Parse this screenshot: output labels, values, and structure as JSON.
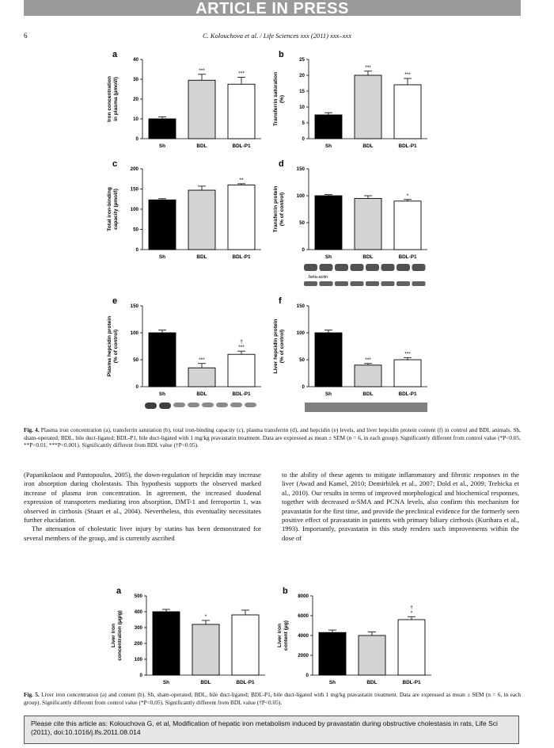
{
  "header": {
    "banner": "ARTICLE IN PRESS",
    "page_number": "6",
    "running_title": "C. Kolouchova et al. / Life Sciences xxx (2011) xxx–xxx"
  },
  "figures": [
    {
      "panels": [
        {
          "letter": "a",
          "type": "bar",
          "ylabel": [
            "Iron concentration",
            "in plasma (µmol/l)"
          ],
          "categories": [
            "Sh",
            "BDL",
            "BDL-P1"
          ],
          "values": [
            10,
            29.5,
            27.5
          ],
          "errors": [
            1,
            3,
            3.5
          ],
          "annotations": [
            [],
            [
              "***"
            ],
            [
              "***"
            ]
          ],
          "colors": [
            "#000000",
            "#d3d3d3",
            "#ffffff"
          ],
          "ylim": [
            0,
            40
          ],
          "yticks": [
            0,
            10,
            20,
            30,
            40
          ]
        },
        {
          "letter": "b",
          "type": "bar",
          "ylabel": [
            "Transferrin saturation",
            "(%)"
          ],
          "categories": [
            "Sh",
            "BDL",
            "BDL-P1"
          ],
          "values": [
            7.5,
            20,
            17
          ],
          "errors": [
            0.7,
            1.3,
            2
          ],
          "annotations": [
            [],
            [
              "***"
            ],
            [
              "***"
            ]
          ],
          "colors": [
            "#000000",
            "#d3d3d3",
            "#ffffff"
          ],
          "ylim": [
            0,
            25
          ],
          "yticks": [
            0,
            5,
            10,
            15,
            20,
            25
          ]
        },
        {
          "letter": "c",
          "type": "bar",
          "ylabel": [
            "Total iron-binding",
            "capacity (µmol/l)"
          ],
          "categories": [
            "Sh",
            "BDL",
            "BDL-P1"
          ],
          "values": [
            123,
            147,
            160
          ],
          "errors": [
            3,
            10,
            3
          ],
          "annotations": [
            [],
            [],
            [
              "**"
            ]
          ],
          "colors": [
            "#000000",
            "#d3d3d3",
            "#ffffff"
          ],
          "ylim": [
            0,
            200
          ],
          "yticks": [
            0,
            50,
            100,
            150,
            200
          ]
        },
        {
          "letter": "d",
          "type": "bar",
          "ylabel": [
            "Transferrin protein",
            "(% of control)"
          ],
          "categories": [
            "Sh",
            "BDL",
            "BDL-P1"
          ],
          "values": [
            100,
            95,
            90
          ],
          "errors": [
            2,
            5,
            3
          ],
          "annotations": [
            [],
            [],
            [
              "*"
            ]
          ],
          "colors": [
            "#000000",
            "#d3d3d3",
            "#ffffff"
          ],
          "ylim": [
            0,
            150
          ],
          "yticks": [
            0,
            50,
            100,
            150
          ],
          "blot_label": "beta-actin"
        },
        {
          "letter": "e",
          "type": "bar",
          "ylabel": [
            "Plasma hepcidin protein",
            "(% of control)"
          ],
          "categories": [
            "Sh",
            "BDL",
            "BDL-P1"
          ],
          "values": [
            100,
            35,
            60
          ],
          "errors": [
            5,
            8,
            6
          ],
          "annotations": [
            [],
            [
              "***"
            ],
            [
              "†",
              "***"
            ]
          ],
          "colors": [
            "#000000",
            "#d3d3d3",
            "#ffffff"
          ],
          "ylim": [
            0,
            150
          ],
          "yticks": [
            0,
            50,
            100,
            150
          ]
        },
        {
          "letter": "f",
          "type": "bar",
          "ylabel": [
            "Liver hepcidin protein",
            "(% of control)"
          ],
          "categories": [
            "Sh",
            "BDL",
            "BDL-P1"
          ],
          "values": [
            100,
            40,
            50
          ],
          "errors": [
            5,
            3,
            4
          ],
          "annotations": [
            [],
            [
              "***"
            ],
            [
              "***"
            ]
          ],
          "colors": [
            "#000000",
            "#d3d3d3",
            "#ffffff"
          ],
          "ylim": [
            0,
            150
          ],
          "yticks": [
            0,
            50,
            100,
            150
          ]
        }
      ],
      "caption_label": "Fig. 4.",
      "caption": "Plasma iron concentration (a), transferrin saturation (b), total iron-binding capacity (c), plasma transferrin (d), and hepcidin (e) levels, and liver hepcidin protein content (f) in control and BDL animals. Sh, sham-operated; BDL, bile duct-ligated; BDL-P1, bile duct-ligated with 1 mg/kg pravastatin treatment. Data are expressed as mean ± SEM (n = 6, in each group). Significantly different from control value (*P<0.05, **P<0.01, ***P<0.001). Significantly different from BDL value (†P<0.05)."
    },
    {
      "panels": [
        {
          "letter": "a",
          "type": "bar",
          "ylabel": [
            "Liver iron",
            "concentration (µg/g)"
          ],
          "categories": [
            "Sh",
            "BDL",
            "BDL-P1"
          ],
          "values": [
            400,
            320,
            380
          ],
          "errors": [
            15,
            25,
            30
          ],
          "annotations": [
            [],
            [
              "*"
            ],
            []
          ],
          "colors": [
            "#000000",
            "#d3d3d3",
            "#ffffff"
          ],
          "ylim": [
            0,
            500
          ],
          "yticks": [
            0,
            100,
            200,
            300,
            400,
            500
          ]
        },
        {
          "letter": "b",
          "type": "bar",
          "ylabel": [
            "Liver iron",
            "content (µg)"
          ],
          "categories": [
            "Sh",
            "BDL",
            "BDL-P1"
          ],
          "values": [
            4300,
            4000,
            5600
          ],
          "errors": [
            250,
            350,
            300
          ],
          "annotations": [
            [],
            [],
            [
              "†",
              "*"
            ]
          ],
          "colors": [
            "#000000",
            "#d3d3d3",
            "#ffffff"
          ],
          "ylim": [
            0,
            8000
          ],
          "yticks": [
            0,
            2000,
            4000,
            6000,
            8000
          ]
        }
      ],
      "caption_label": "Fig. 5.",
      "caption": "Liver iron concentration (a) and content (b). Sh, sham-operated; BDL, bile duct-ligated; BDL-P1, bile duct-ligated with 1 mg/kg pravastatin treatment. Data are expressed as mean ± SEM (n = 6, in each group). Significantly different from control value (*P<0.05). Significantly different from BDL value (†P<0.05)."
    }
  ],
  "body": {
    "left": [
      "(Papanikolaou and Pantopoulos, 2005), the down-regulation of hepcidin may increase iron absorption during cholestasis. This hypothesis supports the observed marked increase of plasma iron concentration. In agreement, the increased duodenal expression of transporters mediating iron absorption, DMT-1 and ferroportin 1, was observed in cirrhosis (Stuart et al., 2004). Nevertheless, this eventuality necessitates further elucidation.",
      "The attenuation of cholestatic liver injury by statins has been demonstrated for several members of the group, and is currently ascribed"
    ],
    "right": [
      "to the ability of these agents to mitigate inflammatory and fibrotic responses in the liver (Awad and Kamel, 2010; Demirbilek et al., 2007; Dold et al., 2009; Trebicka et al., 2010). Our results in terms of improved morphological and biochemical responses, together with decreased α-SMA and PCNA levels, also confirm this mechanism for pravastatin for the first time, and provide the preclinical evidence for the formerly seen positive effect of pravastatin in patients with primary biliary cirrhosis (Kurihara et al., 1993). Importantly, pravastatin in this study renders such improvements within the dose of"
    ]
  },
  "footer": {
    "citation": "Please cite this article as: Kolouchova G, et al, Modification of hepatic iron metabolism induced by pravastatin during obstructive cholestasis in rats, Life Sci (2011), doi:10.1016/j.lfs.2011.08.014"
  }
}
